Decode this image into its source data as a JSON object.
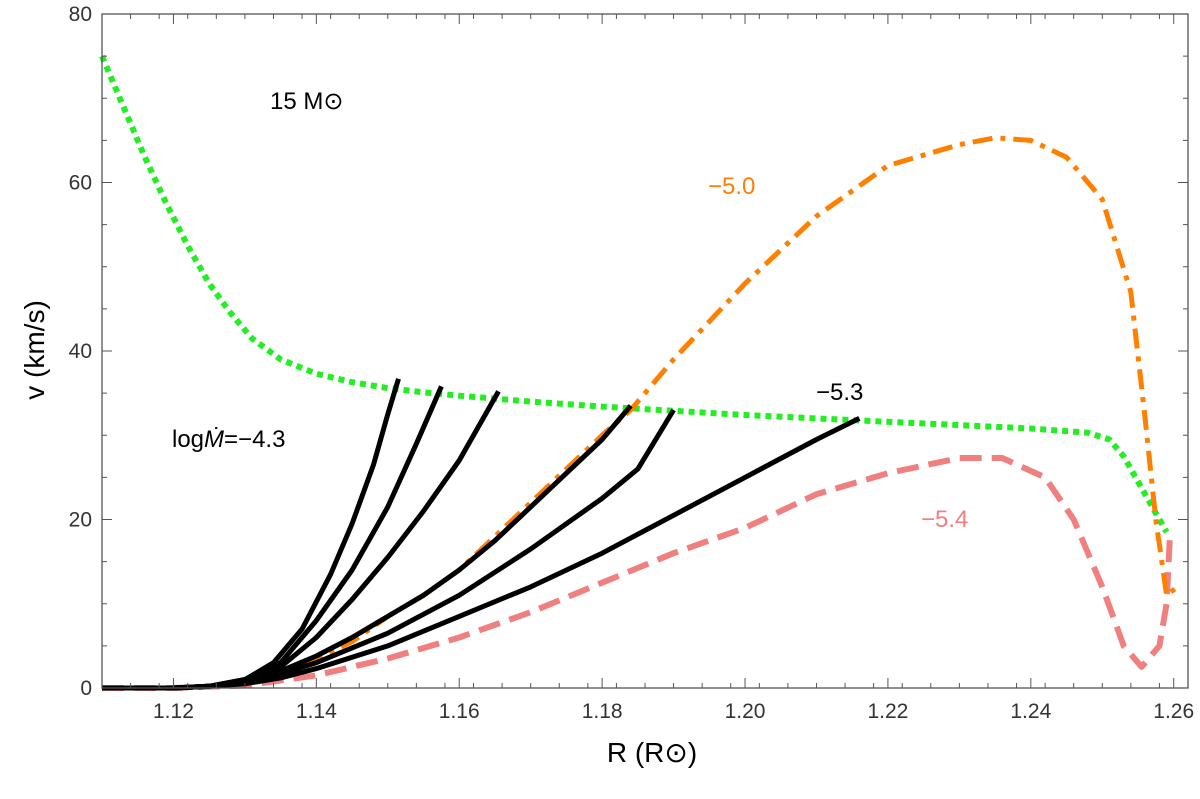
{
  "chart_data": {
    "type": "line",
    "xlabel": "R (R⊙)",
    "ylabel": "v (km/s)",
    "xlim": [
      1.11,
      1.262
    ],
    "ylim": [
      0,
      80
    ],
    "x_ticks": [
      "1.12",
      "1.14",
      "1.16",
      "1.18",
      "1.20",
      "1.22",
      "1.24",
      "1.26"
    ],
    "y_ticks": [
      "0",
      "20",
      "40",
      "60",
      "80"
    ],
    "grid": false,
    "annotations": {
      "mass": "15 M⊙",
      "logmdot_prefix": "log",
      "logmdot_symbol": "Ṁ",
      "logmdot_value": "=−4.3",
      "label_orange": "−5.0",
      "label_black": "−5.3",
      "label_pink": "−5.4"
    },
    "colors": {
      "green": "#22ee22",
      "orange": "#ff8000",
      "pink": "#f08080",
      "black": "#000000"
    },
    "series": [
      {
        "color": "green",
        "style": "dotted",
        "x": [
          1.11,
          1.113,
          1.116,
          1.119,
          1.122,
          1.125,
          1.128,
          1.131,
          1.135,
          1.14,
          1.145,
          1.15,
          1.155,
          1.16,
          1.17,
          1.18,
          1.19,
          1.2,
          1.21,
          1.22,
          1.23,
          1.24,
          1.248,
          1.251,
          1.253,
          1.255,
          1.257,
          1.259
        ],
        "y": [
          75,
          69,
          63,
          57.5,
          52.5,
          48,
          44.5,
          41.5,
          39,
          37.3,
          36.3,
          35.6,
          35.1,
          34.7,
          34,
          33.4,
          32.9,
          32.4,
          32,
          31.6,
          31.2,
          30.8,
          30.3,
          29.5,
          27.5,
          24.5,
          21.5,
          18.5
        ]
      },
      {
        "color": "black",
        "style": "solid",
        "x": [
          1.11,
          1.12,
          1.125,
          1.13,
          1.134,
          1.138,
          1.142,
          1.145,
          1.148,
          1.15,
          1.1515
        ],
        "y": [
          0,
          0,
          0.2,
          1,
          3,
          7,
          13.5,
          19.5,
          26.5,
          32.5,
          36.7
        ]
      },
      {
        "color": "black",
        "style": "solid",
        "x": [
          1.11,
          1.12,
          1.125,
          1.13,
          1.135,
          1.14,
          1.145,
          1.15,
          1.154,
          1.1575
        ],
        "y": [
          0,
          0,
          0.2,
          1,
          3,
          8,
          14,
          21.5,
          29,
          35.8
        ]
      },
      {
        "color": "black",
        "style": "solid",
        "x": [
          1.11,
          1.12,
          1.125,
          1.13,
          1.135,
          1.14,
          1.145,
          1.15,
          1.155,
          1.16,
          1.1655
        ],
        "y": [
          0,
          0,
          0.2,
          1,
          2.5,
          6,
          10.5,
          15.5,
          21,
          27,
          35.2
        ]
      },
      {
        "color": "black",
        "style": "solid",
        "x": [
          1.11,
          1.12,
          1.125,
          1.13,
          1.135,
          1.14,
          1.145,
          1.15,
          1.155,
          1.16,
          1.165,
          1.17,
          1.175,
          1.18,
          1.184
        ],
        "y": [
          0,
          0,
          0.2,
          0.8,
          2,
          3.8,
          6,
          8.5,
          11,
          14,
          17.5,
          21.5,
          25.5,
          29.5,
          33.5
        ]
      },
      {
        "color": "black",
        "style": "solid",
        "x": [
          1.11,
          1.12,
          1.125,
          1.13,
          1.135,
          1.14,
          1.15,
          1.16,
          1.17,
          1.18,
          1.185,
          1.19
        ],
        "y": [
          0,
          0,
          0.2,
          0.7,
          1.7,
          3,
          6.5,
          11,
          16.5,
          22.5,
          26,
          33
        ]
      },
      {
        "color": "black",
        "style": "solid",
        "x": [
          1.11,
          1.12,
          1.125,
          1.13,
          1.135,
          1.14,
          1.15,
          1.16,
          1.17,
          1.18,
          1.19,
          1.2,
          1.21,
          1.216
        ],
        "y": [
          0,
          0,
          0.2,
          0.5,
          1.2,
          2.3,
          5,
          8.5,
          12,
          16,
          20.5,
          25,
          29.5,
          32
        ]
      },
      {
        "color": "orange",
        "style": "dashdot",
        "x": [
          1.11,
          1.12,
          1.125,
          1.13,
          1.135,
          1.14,
          1.145,
          1.15,
          1.155,
          1.16,
          1.165,
          1.17,
          1.175,
          1.18,
          1.184,
          1.19,
          1.2,
          1.21,
          1.22,
          1.23,
          1.235,
          1.24,
          1.245,
          1.25,
          1.254,
          1.256,
          1.2575,
          1.2585,
          1.259,
          1.2605
        ],
        "y": [
          0,
          0,
          0.2,
          0.7,
          1.8,
          3.5,
          5.5,
          8.5,
          11,
          14,
          18,
          22,
          26,
          30,
          33,
          39,
          48,
          56,
          62,
          64.5,
          65.3,
          65,
          63,
          58,
          47,
          32,
          20,
          14,
          11,
          12
        ]
      },
      {
        "color": "pink",
        "style": "dashed",
        "x": [
          1.11,
          1.12,
          1.13,
          1.14,
          1.15,
          1.16,
          1.17,
          1.18,
          1.19,
          1.2,
          1.21,
          1.22,
          1.23,
          1.236,
          1.242,
          1.246,
          1.25,
          1.253,
          1.2555,
          1.258,
          1.259,
          1.2595
        ],
        "y": [
          0,
          0,
          0.3,
          1.5,
          3.5,
          6,
          9,
          12.5,
          16,
          19,
          23,
          25.5,
          27.3,
          27.3,
          25,
          20,
          12,
          5,
          2.5,
          5,
          10,
          18.5
        ]
      }
    ]
  }
}
